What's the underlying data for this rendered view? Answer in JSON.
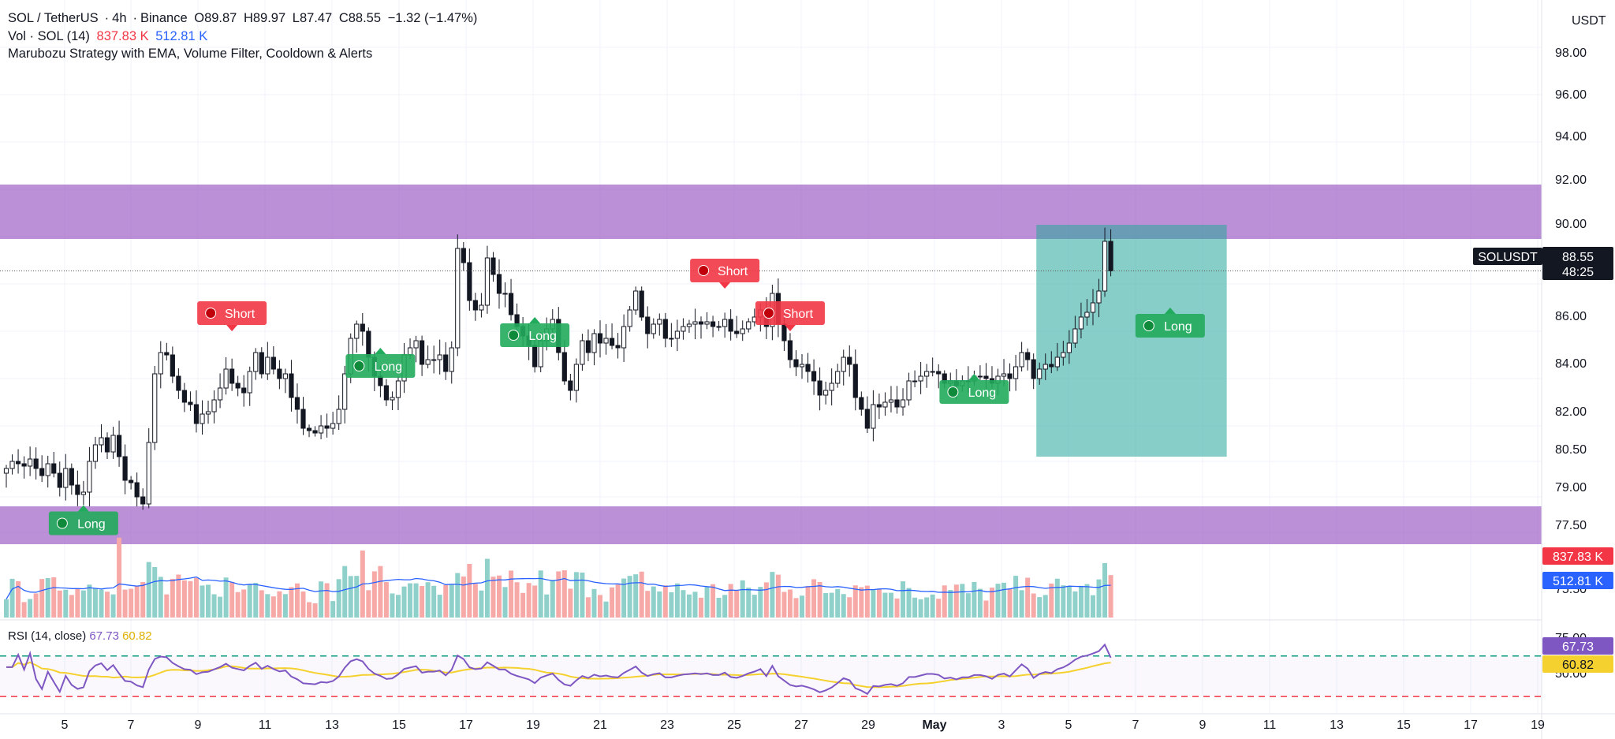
{
  "header": {
    "symbol": "SOL / TetherUS",
    "interval": "4h",
    "exchange": "Binance",
    "open": "O89.87",
    "high": "H89.97",
    "low": "L87.47",
    "close": "C88.55",
    "change": "−1.32 (−1.47%)",
    "vol_label": "Vol · SOL (14)",
    "vol_value": "837.83 K",
    "vol_ma": "512.81 K",
    "strategy": "Marubozu Strategy with EMA, Volume Filter, Cooldown & Alerts",
    "rsi_label": "RSI (14, close)",
    "rsi_value": "67.73",
    "rsi_ma": "60.82"
  },
  "currency": "USDT",
  "price_axis_labels": [
    "98.00",
    "96.00",
    "94.00",
    "92.00",
    "90.00",
    "86.00",
    "84.00",
    "82.00",
    "80.50",
    "79.00",
    "77.50",
    "75.50",
    "75.00",
    "50.00"
  ],
  "time_axis_labels": [
    "5",
    "7",
    "9",
    "11",
    "13",
    "15",
    "17",
    "19",
    "21",
    "23",
    "25",
    "27",
    "29",
    "May",
    "3",
    "5",
    "7",
    "9",
    "11",
    "13",
    "15",
    "17",
    "19"
  ],
  "colors": {
    "up": "#26a69a",
    "down": "#ef5350",
    "candle": "#131722",
    "zone": "#9c5bc4",
    "box": "#26a69a",
    "ma": "#2962ff",
    "rsi": "#7e57c2",
    "rsi_ma": "#f5d130",
    "short_tag": "#f23645",
    "long_tag": "#22ab5c"
  },
  "chart_data": {
    "type": "candlestick",
    "symbol": "SOLUSDT",
    "last_price": "88.55",
    "countdown": "48:25",
    "y_range": [
      77.0,
      99.0
    ],
    "zones": [
      [
        89.9,
        92.2
      ],
      [
        77.0,
        78.6
      ]
    ],
    "position_box": {
      "start_bar": 174,
      "end_bar": 205,
      "top": 90.5,
      "bottom": 80.7
    },
    "closes": [
      80.2,
      80.5,
      80.4,
      80.3,
      80.6,
      80.2,
      79.9,
      80.4,
      80.0,
      79.4,
      80.2,
      79.5,
      79.1,
      79.2,
      80.5,
      81.2,
      81.5,
      80.9,
      81.6,
      80.7,
      79.7,
      79.6,
      79.0,
      78.7,
      81.3,
      84.2,
      85.1,
      85.0,
      84.1,
      83.5,
      83.0,
      82.9,
      82.1,
      82.5,
      82.6,
      83.1,
      83.6,
      84.4,
      83.8,
      83.6,
      83.4,
      84.3,
      85.1,
      84.2,
      84.9,
      84.4,
      84.0,
      84.2,
      83.2,
      82.7,
      81.9,
      81.8,
      81.7,
      82.0,
      81.9,
      82.1,
      82.7,
      84.2,
      85.7,
      86.3,
      86.0,
      84.9,
      84.1,
      83.7,
      83.1,
      83.2,
      83.9,
      85.0,
      85.3,
      85.6,
      84.6,
      84.8,
      84.8,
      85.0,
      84.3,
      85.3,
      89.5,
      88.9,
      87.3,
      86.9,
      87.1,
      89.1,
      88.4,
      87.6,
      87.6,
      86.7,
      86.2,
      85.8,
      85.4,
      84.5,
      85.6,
      86.1,
      86.5,
      85.1,
      83.9,
      83.5,
      84.6,
      85.6,
      85.1,
      85.9,
      85.5,
      85.7,
      85.4,
      85.3,
      86.2,
      86.9,
      87.7,
      86.6,
      85.9,
      86.3,
      86.5,
      85.7,
      85.7,
      86.0,
      86.2,
      86.3,
      86.4,
      86.3,
      86.4,
      86.2,
      86.2,
      86.5,
      86.0,
      85.9,
      86.1,
      86.4,
      86.6,
      86.9,
      86.2,
      87.6,
      86.3,
      85.6,
      84.8,
      84.5,
      84.6,
      84.3,
      83.9,
      83.3,
      83.5,
      83.8,
      84.3,
      84.9,
      84.6,
      83.2,
      82.7,
      81.9,
      82.9,
      82.8,
      83.0,
      83.1,
      82.8,
      83.1,
      83.9,
      83.9,
      84.1,
      84.3,
      84.3,
      84.2,
      83.8,
      83.9,
      83.7,
      83.9,
      83.9,
      84.1,
      84.1,
      84.0,
      83.8,
      84.1,
      84.2,
      84.0,
      84.5,
      85.1,
      84.8,
      84.0,
      84.4,
      84.6,
      84.5,
      84.9,
      85.1,
      85.5,
      86.1,
      86.6,
      86.8,
      87.2,
      87.7,
      89.8,
      88.55
    ],
    "rsi_range": [
      20,
      90
    ],
    "rsi_bands": [
      70,
      30
    ]
  },
  "markers": [
    {
      "type": "long",
      "label": "Long",
      "bar": 13,
      "price": 78.65
    },
    {
      "type": "short",
      "label": "Short",
      "bar": 38,
      "price": 86.0
    },
    {
      "type": "long",
      "label": "Long",
      "bar": 63,
      "price": 85.3
    },
    {
      "type": "long",
      "label": "Long",
      "bar": 89,
      "price": 86.6
    },
    {
      "type": "short",
      "label": "Short",
      "bar": 121,
      "price": 87.8
    },
    {
      "type": "short",
      "label": "Short",
      "bar": 132,
      "price": 86.0
    },
    {
      "type": "long",
      "label": "Long",
      "bar": 163,
      "price": 84.2
    },
    {
      "type": "long",
      "label": "Long",
      "bar": 196,
      "price": 87.0
    }
  ],
  "badges": {
    "symbol_label": "SOLUSDT",
    "last": "88.55",
    "countdown": "48:25",
    "vol": "837.83 K",
    "vol_ma": "512.81 K",
    "rsi": "67.73",
    "rsi_ma": "60.82"
  }
}
